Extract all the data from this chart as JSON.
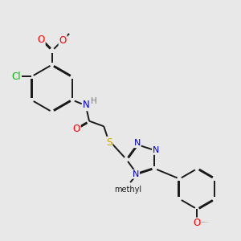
{
  "bg_color": "#e8e8e8",
  "bond_color": "#1a1a1a",
  "bond_lw": 1.4,
  "dbo": 0.03,
  "atom_colors": {
    "O": "#ff0000",
    "N": "#0000cc",
    "S": "#ccaa00",
    "Cl": "#00bb00",
    "C": "#1a1a1a",
    "H": "#777777"
  },
  "fs": 8.5,
  "fs_small": 7.5
}
